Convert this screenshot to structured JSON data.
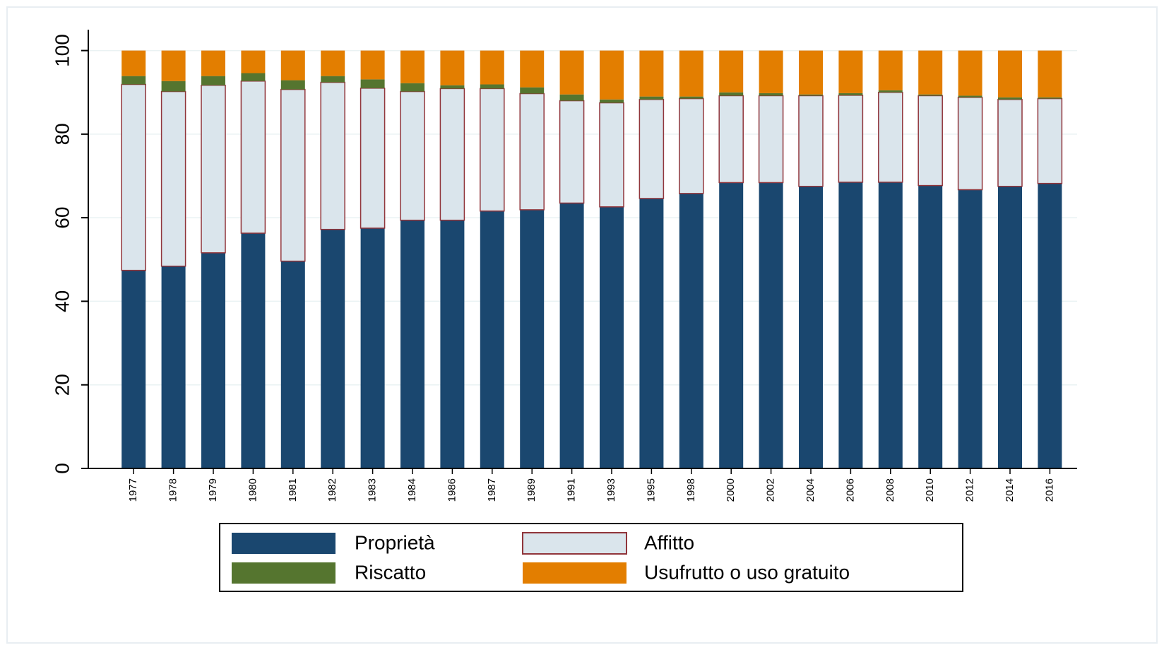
{
  "chart_data": {
    "type": "stacked_bar",
    "categories": [
      "1977",
      "1978",
      "1979",
      "1980",
      "1981",
      "1982",
      "1983",
      "1984",
      "1986",
      "1987",
      "1989",
      "1991",
      "1993",
      "1995",
      "1998",
      "2000",
      "2002",
      "2004",
      "2006",
      "2008",
      "2010",
      "2012",
      "2014",
      "2016"
    ],
    "series": [
      {
        "name": "Proprietà",
        "color": "#1a476f",
        "values": [
          47.4,
          48.4,
          51.6,
          56.3,
          49.6,
          57.2,
          57.5,
          59.4,
          59.4,
          61.6,
          61.9,
          63.5,
          62.6,
          64.6,
          65.8,
          68.4,
          68.4,
          67.5,
          68.5,
          68.5,
          67.7,
          66.7,
          67.5,
          68.2
        ]
      },
      {
        "name": "Affitto",
        "color": "#dae5ec",
        "values": [
          44.5,
          41.8,
          40.1,
          36.4,
          41.1,
          35.2,
          33.5,
          30.8,
          31.5,
          29.3,
          27.8,
          24.5,
          24.9,
          23.7,
          22.7,
          20.8,
          20.8,
          21.7,
          20.8,
          21.5,
          21.5,
          22.1,
          20.8,
          20.3
        ]
      },
      {
        "name": "Riscatto",
        "color": "#55752f",
        "values": [
          2.0,
          2.5,
          2.2,
          1.9,
          2.2,
          1.5,
          2.1,
          2.0,
          0.8,
          1.0,
          1.5,
          1.5,
          0.8,
          0.7,
          0.5,
          0.8,
          0.6,
          0.3,
          0.5,
          0.5,
          0.3,
          0.4,
          0.5,
          0.3
        ]
      },
      {
        "name": "Usufrutto o uso gratuito",
        "color": "#e37e00",
        "values": [
          6.1,
          7.3,
          6.1,
          5.4,
          7.1,
          6.1,
          6.9,
          7.8,
          8.3,
          8.1,
          8.8,
          10.5,
          11.7,
          11.0,
          11.0,
          10.0,
          10.2,
          10.5,
          10.2,
          9.5,
          10.5,
          10.8,
          11.2,
          11.2
        ]
      }
    ],
    "ylim": [
      0,
      105
    ],
    "yticks": [
      0,
      20,
      40,
      60,
      80,
      100
    ],
    "grid": true
  }
}
